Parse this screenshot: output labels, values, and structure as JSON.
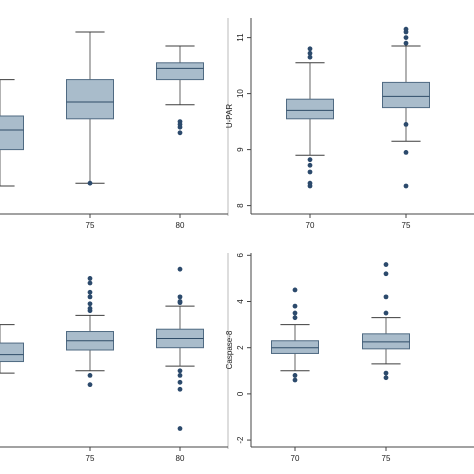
{
  "colors": {
    "box_fill": "#a9bccb",
    "box_stroke": "#4f6a82",
    "median": "#2f4c67",
    "whisker": "#3d3d3d",
    "outlier": "#2c4a6c",
    "axis": "#444444",
    "text": "#222222"
  },
  "chart_data": [
    {
      "panel": "top-left",
      "type": "box",
      "ylabel": "",
      "categories": [
        "",
        "75",
        "80"
      ],
      "ylim": [
        8,
        11.5
      ],
      "yticks": [],
      "boxes": [
        {
          "x": "",
          "whisker_low": 8.5,
          "q1": 9.15,
          "median": 9.5,
          "q3": 9.75,
          "whisker_high": 10.4,
          "outliers": []
        },
        {
          "x": "75",
          "whisker_low": 8.55,
          "q1": 9.7,
          "median": 10.0,
          "q3": 10.4,
          "whisker_high": 11.25,
          "outliers": [
            8.55
          ]
        },
        {
          "x": "80",
          "whisker_low": 9.95,
          "q1": 10.4,
          "median": 10.6,
          "q3": 10.7,
          "whisker_high": 11.0,
          "outliers": [
            9.65,
            9.6,
            9.55,
            9.45
          ]
        }
      ]
    },
    {
      "panel": "top-right",
      "type": "box",
      "ylabel": "U-PAR",
      "categories": [
        "70",
        "75"
      ],
      "ylim": [
        7.85,
        11.35
      ],
      "yticks": [
        8,
        9,
        10,
        11
      ],
      "boxes": [
        {
          "x": "70",
          "whisker_low": 8.9,
          "q1": 9.55,
          "median": 9.7,
          "q3": 9.9,
          "whisker_high": 10.55,
          "outliers": [
            10.8,
            10.72,
            10.65,
            8.82,
            8.72,
            8.6,
            8.4,
            8.35
          ]
        },
        {
          "x": "75",
          "whisker_low": 9.15,
          "q1": 9.75,
          "median": 9.95,
          "q3": 10.2,
          "whisker_high": 10.85,
          "outliers": [
            11.15,
            11.1,
            11.0,
            10.9,
            9.45,
            8.95,
            8.35
          ]
        }
      ]
    },
    {
      "panel": "bottom-left",
      "type": "box",
      "ylabel": "",
      "categories": [
        "",
        "75",
        "80"
      ],
      "ylim": [
        -2.3,
        6.1
      ],
      "yticks": [],
      "boxes": [
        {
          "x": "",
          "whisker_low": 0.9,
          "q1": 1.4,
          "median": 1.7,
          "q3": 2.2,
          "whisker_high": 3.0,
          "outliers": []
        },
        {
          "x": "75",
          "whisker_low": 1.0,
          "q1": 1.9,
          "median": 2.3,
          "q3": 2.7,
          "whisker_high": 3.4,
          "outliers": [
            5.0,
            4.8,
            4.4,
            4.2,
            3.9,
            3.7,
            3.6,
            0.8,
            0.4
          ]
        },
        {
          "x": "80",
          "whisker_low": 1.2,
          "q1": 2.0,
          "median": 2.4,
          "q3": 2.8,
          "whisker_high": 3.8,
          "outliers": [
            5.4,
            4.2,
            4.0,
            3.95,
            1.0,
            0.8,
            0.5,
            0.2,
            -1.5
          ]
        }
      ]
    },
    {
      "panel": "bottom-right",
      "type": "box",
      "ylabel": "Caspase-8",
      "categories": [
        "70",
        "75"
      ],
      "ylim": [
        -2.3,
        6.1
      ],
      "yticks": [
        -2,
        0,
        2,
        4,
        6
      ],
      "boxes": [
        {
          "x": "70",
          "whisker_low": 1.0,
          "q1": 1.75,
          "median": 2.0,
          "q3": 2.3,
          "whisker_high": 3.0,
          "outliers": [
            4.5,
            3.8,
            3.5,
            3.3,
            0.8,
            0.6
          ]
        },
        {
          "x": "75",
          "whisker_low": 1.3,
          "q1": 1.95,
          "median": 2.25,
          "q3": 2.6,
          "whisker_high": 3.3,
          "outliers": [
            5.6,
            5.2,
            4.2,
            3.5,
            0.9,
            0.7
          ]
        }
      ]
    }
  ]
}
